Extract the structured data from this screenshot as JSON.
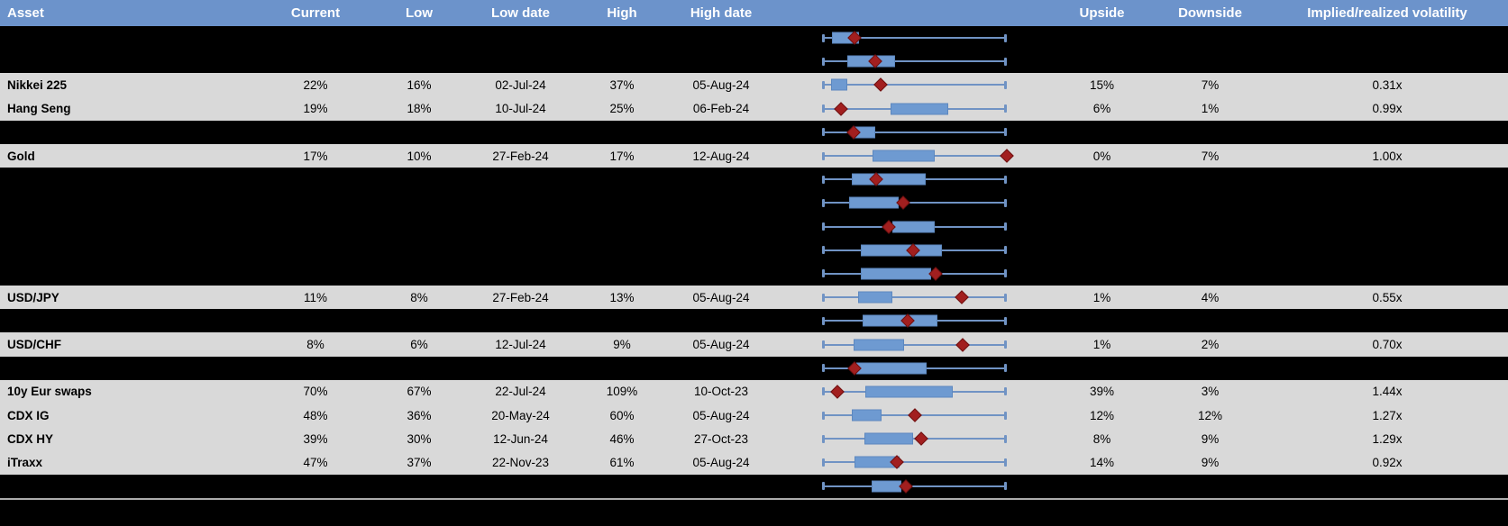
{
  "colors": {
    "header_bg": "#6c93cb",
    "header_text": "#ffffff",
    "row_bg": "#d9d9d9",
    "redacted_bg": "#000000",
    "whisker": "#7093c4",
    "box_fill": "#6e9ad1",
    "box_border": "#5d88bf",
    "marker_fill": "#a21f1f",
    "marker_border": "#6e1111",
    "separator": "#adadad"
  },
  "chart_data": {
    "type": "table",
    "columns": [
      "Asset",
      "Current",
      "Low",
      "Low date",
      "High",
      "High date",
      "",
      "Upside",
      "Downside",
      "Implied/realized volatility"
    ],
    "boxplot_legend": {
      "description": "Each row has a horizontal box-whisker chart: whiskers span the low-to-high range (normalized 0-1), blue box shows interquartile band, red diamond marks current level",
      "whisker_min": 0,
      "whisker_max": 1
    },
    "rows": [
      {
        "redacted": true,
        "asset": "",
        "current": "",
        "low": "",
        "low_date": "",
        "high": "",
        "high_date": "",
        "upside": "",
        "downside": "",
        "implied_realized": "",
        "boxplot": {
          "box_start": 0.054,
          "box_end": 0.2,
          "marker": 0.176
        }
      },
      {
        "redacted": true,
        "asset": "",
        "current": "",
        "low": "",
        "low_date": "",
        "high": "",
        "high_date": "",
        "upside": "",
        "downside": "",
        "implied_realized": "",
        "boxplot": {
          "box_start": 0.137,
          "box_end": 0.395,
          "marker": 0.288
        }
      },
      {
        "redacted": false,
        "asset": "Nikkei 225",
        "current": "22%",
        "low": "16%",
        "low_date": "02-Jul-24",
        "high": "37%",
        "high_date": "05-Aug-24",
        "upside": "15%",
        "downside": "7%",
        "implied_realized": "0.31x",
        "boxplot": {
          "box_start": 0.049,
          "box_end": 0.137,
          "marker": 0.317
        }
      },
      {
        "redacted": false,
        "asset": "Hang Seng",
        "current": "19%",
        "low": "18%",
        "low_date": "10-Jul-24",
        "high": "25%",
        "high_date": "06-Feb-24",
        "upside": "6%",
        "downside": "1%",
        "implied_realized": "0.99x",
        "boxplot": {
          "box_start": 0.371,
          "box_end": 0.683,
          "marker": 0.102
        }
      },
      {
        "redacted": true,
        "asset": "",
        "current": "",
        "low": "",
        "low_date": "",
        "high": "",
        "high_date": "",
        "upside": "",
        "downside": "",
        "implied_realized": "",
        "boxplot": {
          "box_start": 0.176,
          "box_end": 0.288,
          "marker": 0.171
        }
      },
      {
        "redacted": false,
        "asset": "Gold",
        "current": "17%",
        "low": "10%",
        "low_date": "27-Feb-24",
        "high": "17%",
        "high_date": "12-Aug-24",
        "upside": "0%",
        "downside": "7%",
        "implied_realized": "1.00x",
        "boxplot": {
          "box_start": 0.273,
          "box_end": 0.61,
          "marker": 1.0
        }
      },
      {
        "redacted": true,
        "asset": "",
        "current": "",
        "low": "",
        "low_date": "",
        "high": "",
        "high_date": "",
        "upside": "",
        "downside": "",
        "implied_realized": "",
        "boxplot": {
          "box_start": 0.161,
          "box_end": 0.561,
          "marker": 0.293
        }
      },
      {
        "redacted": true,
        "asset": "",
        "current": "",
        "low": "",
        "low_date": "",
        "high": "",
        "high_date": "",
        "upside": "",
        "downside": "",
        "implied_realized": "",
        "boxplot": {
          "box_start": 0.146,
          "box_end": 0.415,
          "marker": 0.439
        }
      },
      {
        "redacted": true,
        "asset": "",
        "current": "",
        "low": "",
        "low_date": "",
        "high": "",
        "high_date": "",
        "upside": "",
        "downside": "",
        "implied_realized": "",
        "boxplot": {
          "box_start": 0.38,
          "box_end": 0.61,
          "marker": 0.361
        }
      },
      {
        "redacted": true,
        "asset": "",
        "current": "",
        "low": "",
        "low_date": "",
        "high": "",
        "high_date": "",
        "upside": "",
        "downside": "",
        "implied_realized": "",
        "boxplot": {
          "box_start": 0.21,
          "box_end": 0.649,
          "marker": 0.493
        }
      },
      {
        "redacted": true,
        "asset": "",
        "current": "",
        "low": "",
        "low_date": "",
        "high": "",
        "high_date": "",
        "upside": "",
        "downside": "",
        "implied_realized": "",
        "boxplot": {
          "box_start": 0.21,
          "box_end": 0.59,
          "marker": 0.615
        }
      },
      {
        "redacted": false,
        "asset": "USD/JPY",
        "current": "11%",
        "low": "8%",
        "low_date": "27-Feb-24",
        "high": "13%",
        "high_date": "05-Aug-24",
        "upside": "1%",
        "downside": "4%",
        "implied_realized": "0.55x",
        "boxplot": {
          "box_start": 0.195,
          "box_end": 0.38,
          "marker": 0.756
        }
      },
      {
        "redacted": true,
        "asset": "",
        "current": "",
        "low": "",
        "low_date": "",
        "high": "",
        "high_date": "",
        "upside": "",
        "downside": "",
        "implied_realized": "",
        "boxplot": {
          "box_start": 0.22,
          "box_end": 0.624,
          "marker": 0.463
        }
      },
      {
        "redacted": false,
        "asset": "USD/CHF",
        "current": "8%",
        "low": "6%",
        "low_date": "12-Jul-24",
        "high": "9%",
        "high_date": "05-Aug-24",
        "upside": "1%",
        "downside": "2%",
        "implied_realized": "0.70x",
        "boxplot": {
          "box_start": 0.171,
          "box_end": 0.444,
          "marker": 0.761
        }
      },
      {
        "redacted": true,
        "asset": "",
        "current": "",
        "low": "",
        "low_date": "",
        "high": "",
        "high_date": "",
        "upside": "",
        "downside": "",
        "implied_realized": "",
        "boxplot": {
          "box_start": 0.185,
          "box_end": 0.566,
          "marker": 0.176
        }
      },
      {
        "redacted": false,
        "asset": "10y Eur swaps",
        "current": "70%",
        "low": "67%",
        "low_date": "22-Jul-24",
        "high": "109%",
        "high_date": "10-Oct-23",
        "upside": "39%",
        "downside": "3%",
        "implied_realized": "1.44x",
        "boxplot": {
          "box_start": 0.234,
          "box_end": 0.707,
          "marker": 0.083
        }
      },
      {
        "redacted": false,
        "asset": "CDX IG",
        "current": "48%",
        "low": "36%",
        "low_date": "20-May-24",
        "high": "60%",
        "high_date": "05-Aug-24",
        "upside": "12%",
        "downside": "12%",
        "implied_realized": "1.27x",
        "boxplot": {
          "box_start": 0.161,
          "box_end": 0.322,
          "marker": 0.502
        }
      },
      {
        "redacted": false,
        "asset": "CDX HY",
        "current": "39%",
        "low": "30%",
        "low_date": "12-Jun-24",
        "high": "46%",
        "high_date": "27-Oct-23",
        "upside": "8%",
        "downside": "9%",
        "implied_realized": "1.29x",
        "boxplot": {
          "box_start": 0.229,
          "box_end": 0.493,
          "marker": 0.537
        }
      },
      {
        "redacted": false,
        "asset": "iTraxx",
        "current": "47%",
        "low": "37%",
        "low_date": "22-Nov-23",
        "high": "61%",
        "high_date": "05-Aug-24",
        "upside": "14%",
        "downside": "9%",
        "implied_realized": "0.92x",
        "boxplot": {
          "box_start": 0.176,
          "box_end": 0.42,
          "marker": 0.405
        }
      },
      {
        "redacted": true,
        "asset": "",
        "current": "",
        "low": "",
        "low_date": "",
        "high": "",
        "high_date": "",
        "upside": "",
        "downside": "",
        "implied_realized": "",
        "boxplot": {
          "box_start": 0.268,
          "box_end": 0.429,
          "marker": 0.454
        }
      }
    ]
  }
}
